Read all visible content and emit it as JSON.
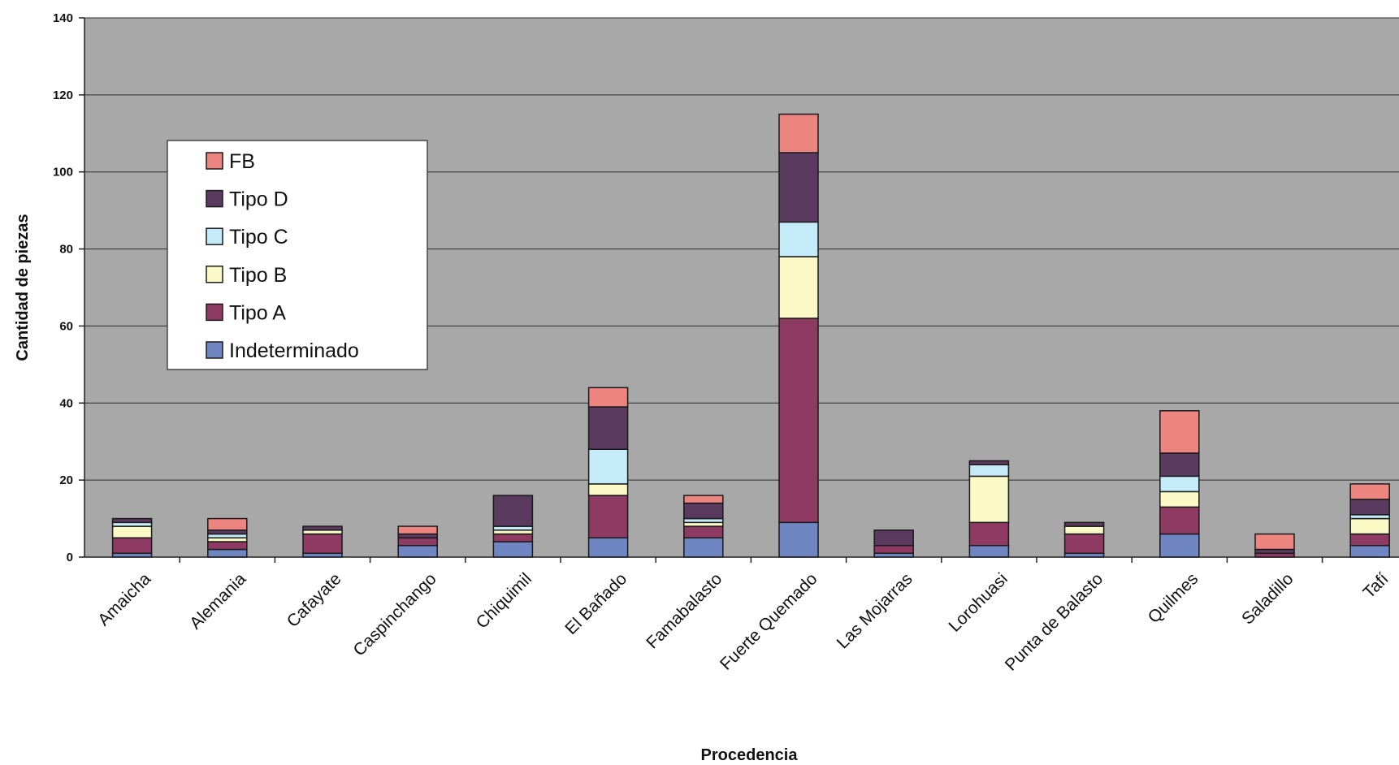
{
  "chart_data": {
    "type": "bar",
    "stacked": true,
    "xlabel": "Procedencia",
    "ylabel": "Cantidad de piezas",
    "ylim": [
      0,
      140
    ],
    "yticks": [
      0,
      20,
      40,
      60,
      80,
      100,
      120,
      140
    ],
    "grid": true,
    "legend_position": "upper-left inside plot",
    "plot_background": "#a8a8a8",
    "categories": [
      "Amaicha",
      "Alemania",
      "Cafayate",
      "Caspinchango",
      "Chiquimil",
      "El Bañado",
      "Famabalasto",
      "Fuerte Quemado",
      "Las Mojarras",
      "Lorohuasi",
      "Punta de Balasto",
      "Quilmes",
      "Saladillo",
      "Tafí"
    ],
    "series": [
      {
        "name": "Indeterminado",
        "color": "#6f86c2",
        "values": [
          1,
          2,
          1,
          3,
          4,
          5,
          5,
          9,
          1,
          3,
          1,
          6,
          0,
          3
        ]
      },
      {
        "name": "Tipo A",
        "color": "#8e3a63",
        "values": [
          4,
          2,
          5,
          2,
          2,
          11,
          3,
          53,
          2,
          6,
          5,
          7,
          1,
          3
        ]
      },
      {
        "name": "Tipo B",
        "color": "#fbfac6",
        "values": [
          3,
          1,
          1,
          0,
          1,
          3,
          1,
          16,
          0,
          12,
          2,
          4,
          0,
          4
        ]
      },
      {
        "name": "Tipo C",
        "color": "#c4ebf7",
        "values": [
          1,
          1,
          0,
          0,
          1,
          9,
          1,
          9,
          0,
          3,
          0,
          4,
          0,
          1
        ]
      },
      {
        "name": "Tipo D",
        "color": "#5a3a5f",
        "values": [
          1,
          1,
          1,
          1,
          8,
          11,
          4,
          18,
          4,
          1,
          1,
          6,
          1,
          4
        ]
      },
      {
        "name": "FB",
        "color": "#ec8480",
        "values": [
          0,
          3,
          0,
          2,
          0,
          5,
          2,
          10,
          0,
          0,
          0,
          11,
          4,
          4
        ]
      }
    ]
  }
}
